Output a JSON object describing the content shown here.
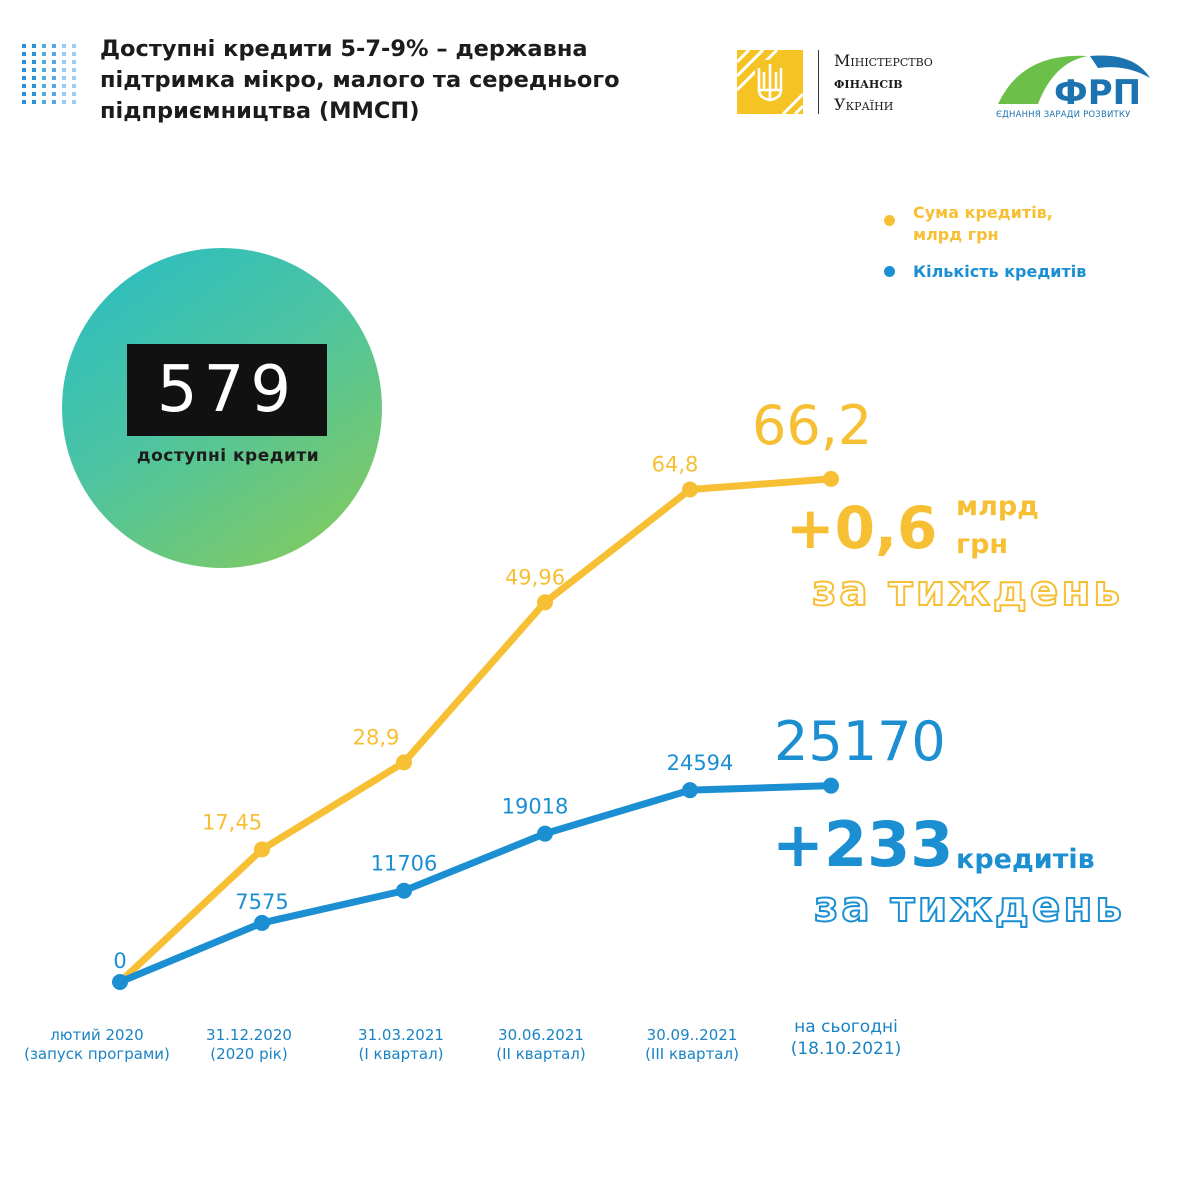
{
  "header": {
    "title_lines": [
      "Доступні кредити 5-7-9% – державна",
      "підтримка мікро, малого та середнього",
      "підприємництва (ММСП)"
    ],
    "ministry": {
      "line1": "Міністерство",
      "line2": "фінансів",
      "line3": "України"
    },
    "frp": {
      "name": "ФРП",
      "tagline": "ЄДНАННЯ ЗАРАДИ РОЗВИТКУ"
    }
  },
  "badge": {
    "number": "579",
    "caption": "доступні кредити"
  },
  "legend": {
    "amount_line1": "Сума кредитів,",
    "amount_line2": "млрд грн",
    "count": "Кількість кредитів"
  },
  "highlights": {
    "amount_value": "66,2",
    "amount_increase": "+0,6",
    "amount_unit_line1": "млрд",
    "amount_unit_line2": "грн",
    "amount_period": "за тиждень",
    "count_value": "25170",
    "count_increase": "+233",
    "count_unit": "кредитів",
    "count_period": "за тиждень"
  },
  "colors": {
    "amount": "#f7bf34",
    "count": "#1b8fd2",
    "count_label": "#1b83c3"
  },
  "chart_data": {
    "type": "line",
    "categories": [
      [
        "лютий 2020",
        "(запуск програми)"
      ],
      [
        "31.12.2020",
        "(2020 рік)"
      ],
      [
        "31.03.2021",
        "(І квартал)"
      ],
      [
        "30.06.2021",
        "(ІІ квартал)"
      ],
      [
        "30.09..2021",
        "(ІІІ квартал)"
      ],
      [
        "на сьогодні",
        "(18.10.2021)"
      ]
    ],
    "series": [
      {
        "name": "Сума кредитів, млрд грн",
        "values": [
          0,
          17.45,
          28.9,
          49.96,
          64.8,
          66.2
        ],
        "labels": [
          "",
          "17,45",
          "28,9",
          "49,96",
          "64,8",
          ""
        ]
      },
      {
        "name": "Кількість кредитів",
        "values": [
          0,
          7575,
          11706,
          19018,
          24594,
          25170
        ],
        "labels": [
          "0",
          "7575",
          "11706",
          "19018",
          "24594",
          ""
        ]
      }
    ],
    "legend_position": "top-right",
    "grid": false
  }
}
